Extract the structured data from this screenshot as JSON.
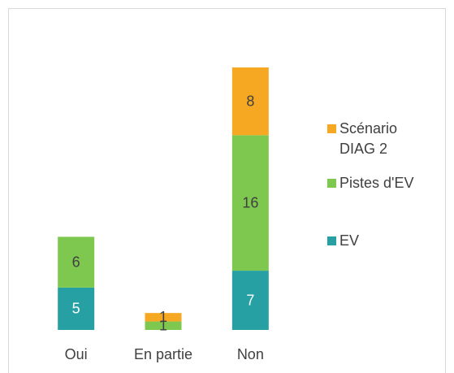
{
  "chart_data": {
    "type": "stacked_bar",
    "categories": [
      "Oui",
      "En partie",
      "Non"
    ],
    "series": [
      {
        "name": "EV",
        "color": "#26a0a3",
        "label_color": "#ffffff",
        "values": [
          5,
          null,
          7
        ]
      },
      {
        "name": "Pistes d'EV",
        "color": "#7ec850",
        "label_color": "#404040",
        "values": [
          6,
          1,
          16
        ]
      },
      {
        "name": "Scénario DIAG 2",
        "color": "#f7a823",
        "label_color": "#404040",
        "values": [
          null,
          1,
          8
        ]
      }
    ],
    "legend": "right"
  }
}
